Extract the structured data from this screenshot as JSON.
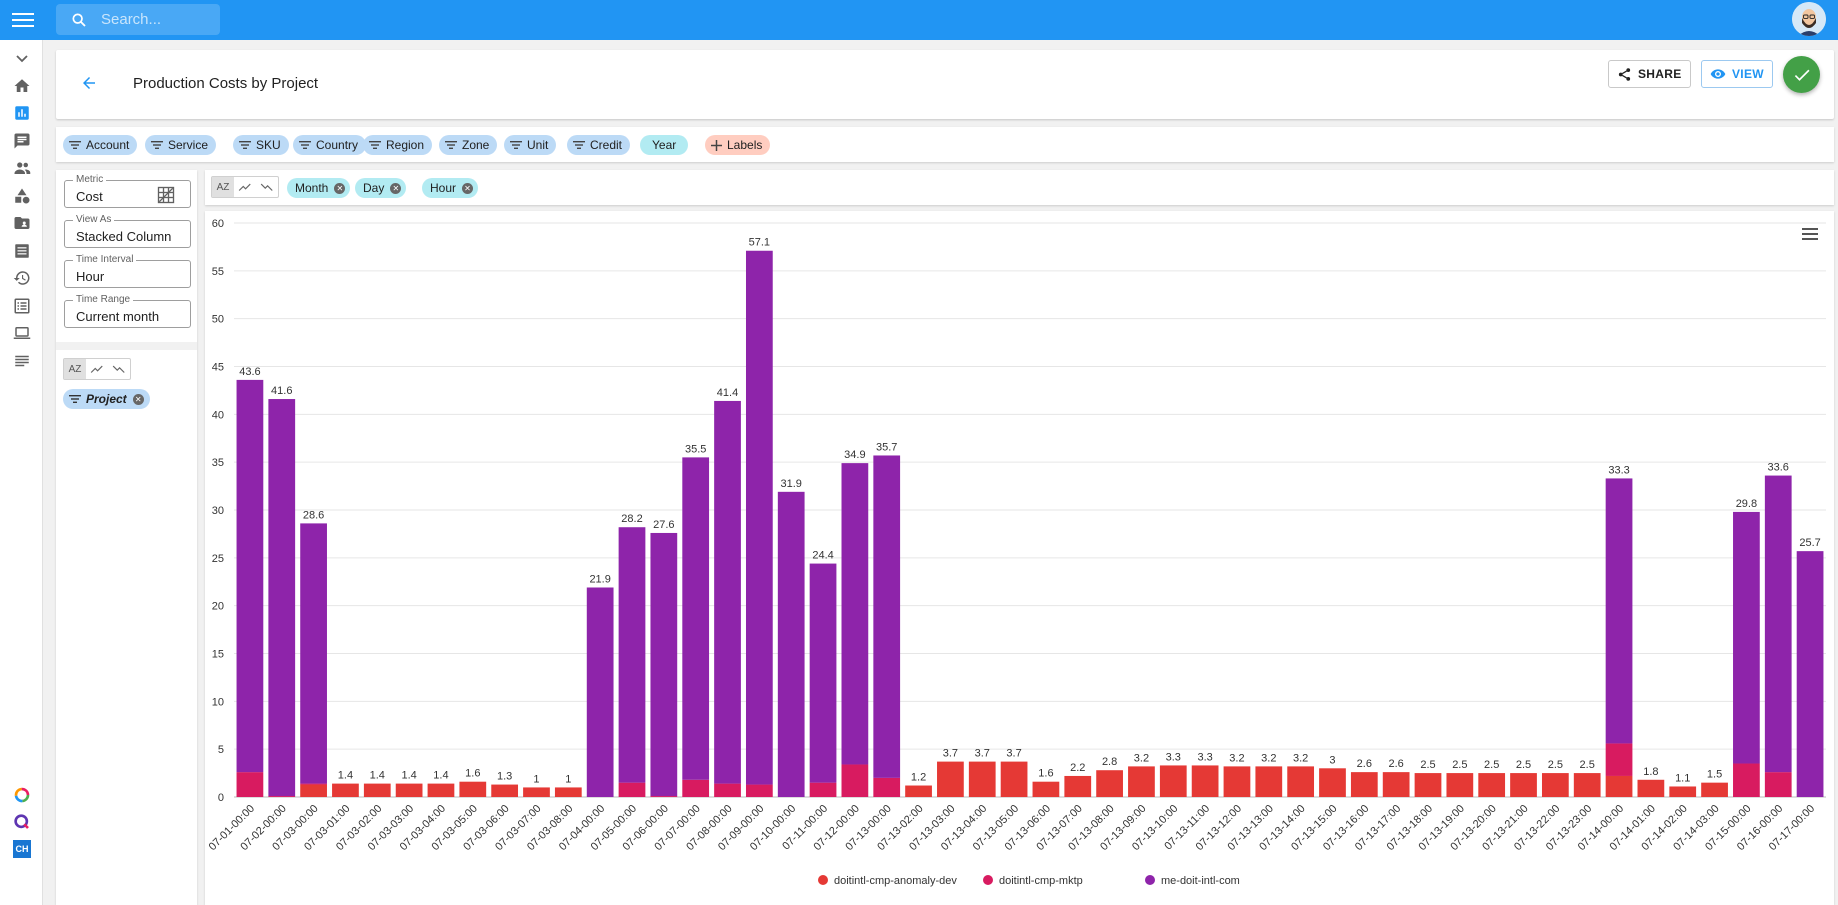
{
  "search": {
    "placeholder": "Search..."
  },
  "rail": {
    "icons": [
      "chevron-down-icon",
      "home-icon",
      "analytics-icon",
      "chat-icon",
      "people-icon",
      "shapes-icon",
      "folder-icon",
      "list-icon",
      "history-icon",
      "checklist-icon",
      "laptop-icon",
      "notes-icon"
    ],
    "bottom": [
      "ring-icon",
      "q-icon"
    ],
    "ch_label": "CH"
  },
  "header": {
    "title": "Production Costs by Project",
    "share_label": "SHARE",
    "view_label": "VIEW"
  },
  "filters": [
    {
      "label": "Account",
      "style": "blue"
    },
    {
      "label": "Service",
      "style": "blue"
    },
    {
      "label": "SKU",
      "style": "blue"
    },
    {
      "label": "Country",
      "style": "blue"
    },
    {
      "label": "Region",
      "style": "blue"
    },
    {
      "label": "Zone",
      "style": "blue"
    },
    {
      "label": "Unit",
      "style": "blue"
    },
    {
      "label": "Credit",
      "style": "blue"
    },
    {
      "label": "Year",
      "style": "teal"
    },
    {
      "label": "Labels",
      "style": "orange"
    }
  ],
  "settings": {
    "metric": {
      "label": "Metric",
      "value": "Cost"
    },
    "view_as": {
      "label": "View As",
      "value": "Stacked Column"
    },
    "time_interval": {
      "label": "Time Interval",
      "value": "Hour"
    },
    "time_range": {
      "label": "Time Range",
      "value": "Current month"
    }
  },
  "sort_label": "AZ",
  "row_group": {
    "label": "Project"
  },
  "col_groups": [
    "Month",
    "Day",
    "Hour"
  ],
  "chart_data": {
    "type": "bar",
    "stacked": true,
    "ylim": [
      0,
      60
    ],
    "yticks": [
      0,
      5,
      10,
      15,
      20,
      25,
      30,
      35,
      40,
      45,
      50,
      55,
      60
    ],
    "grid": true,
    "legend_position": "bottom",
    "categories": [
      "07-01-00:00",
      "07-02-00:00",
      "07-03-00:00",
      "07-03-01:00",
      "07-03-02:00",
      "07-03-03:00",
      "07-03-04:00",
      "07-03-05:00",
      "07-03-06:00",
      "07-03-07:00",
      "07-03-08:00",
      "07-04-00:00",
      "07-05-00:00",
      "07-06-00:00",
      "07-07-00:00",
      "07-08-00:00",
      "07-09-00:00",
      "07-10-00:00",
      "07-11-00:00",
      "07-12-00:00",
      "07-13-00:00",
      "07-13-02:00",
      "07-13-03:00",
      "07-13-04:00",
      "07-13-05:00",
      "07-13-06:00",
      "07-13-07:00",
      "07-13-08:00",
      "07-13-09:00",
      "07-13-10:00",
      "07-13-11:00",
      "07-13-12:00",
      "07-13-13:00",
      "07-13-14:00",
      "07-13-15:00",
      "07-13-16:00",
      "07-13-17:00",
      "07-13-18:00",
      "07-13-19:00",
      "07-13-20:00",
      "07-13-21:00",
      "07-13-22:00",
      "07-13-23:00",
      "07-14-00:00",
      "07-14-01:00",
      "07-14-02:00",
      "07-14-03:00",
      "07-15-00:00",
      "07-16-00:00",
      "07-17-00:00"
    ],
    "totals": [
      "43.6",
      "41.6",
      "28.6",
      "1.4",
      "1.4",
      "1.4",
      "1.4",
      "1.6",
      "1.3",
      "1",
      "1",
      "21.9",
      "28.2",
      "27.6",
      "35.5",
      "41.4",
      "57.1",
      "31.9",
      "24.4",
      "34.9",
      "35.7",
      "1.2",
      "3.7",
      "3.7",
      "3.7",
      "1.6",
      "2.2",
      "2.8",
      "3.2",
      "3.3",
      "3.3",
      "3.2",
      "3.2",
      "3.2",
      "3",
      "2.6",
      "2.6",
      "2.5",
      "2.5",
      "2.5",
      "2.5",
      "2.5",
      "2.5",
      "33.3",
      "1.8",
      "1.1",
      "1.5",
      "29.8",
      "33.6",
      "25.7"
    ],
    "series": [
      {
        "name": "doitintl-cmp-anomaly-dev",
        "color": "#e53935",
        "values": [
          0,
          0,
          1.3,
          1.4,
          1.4,
          1.4,
          1.4,
          1.6,
          1.3,
          1,
          1,
          0,
          0,
          0,
          0,
          0,
          0,
          0,
          0,
          0,
          0,
          1.2,
          3.7,
          3.7,
          3.7,
          1.6,
          2.2,
          2.8,
          3.2,
          3.3,
          3.3,
          3.2,
          3.2,
          3.2,
          3,
          2.6,
          2.6,
          2.5,
          2.5,
          2.5,
          2.5,
          2.5,
          2.5,
          2.2,
          1.8,
          1.1,
          1.5,
          0,
          0,
          0
        ]
      },
      {
        "name": "doitintl-cmp-mktp",
        "color": "#d81b60",
        "values": [
          2.6,
          0.1,
          0.1,
          0,
          0,
          0,
          0,
          0,
          0,
          0,
          0,
          0,
          1.5,
          0.1,
          1.8,
          1.4,
          1.3,
          0,
          1.5,
          3.4,
          2.0,
          0,
          0,
          0,
          0,
          0,
          0,
          0,
          0,
          0,
          0,
          0,
          0,
          0,
          0,
          0,
          0,
          0,
          0,
          0,
          0,
          0,
          0,
          3.4,
          0,
          0,
          0,
          3.5,
          2.6,
          0
        ]
      },
      {
        "name": "me-doit-intl-com",
        "color": "#8e24aa",
        "values": [
          41.0,
          41.5,
          27.2,
          0,
          0,
          0,
          0,
          0,
          0,
          0,
          0,
          21.9,
          26.7,
          27.5,
          33.7,
          40.0,
          55.8,
          31.9,
          22.9,
          31.5,
          33.7,
          0,
          0,
          0,
          0,
          0,
          0,
          0,
          0,
          0,
          0,
          0,
          0,
          0,
          0,
          0,
          0,
          0,
          0,
          0,
          0,
          0,
          0,
          27.7,
          0,
          0,
          0,
          26.3,
          31.0,
          25.7
        ]
      }
    ]
  }
}
